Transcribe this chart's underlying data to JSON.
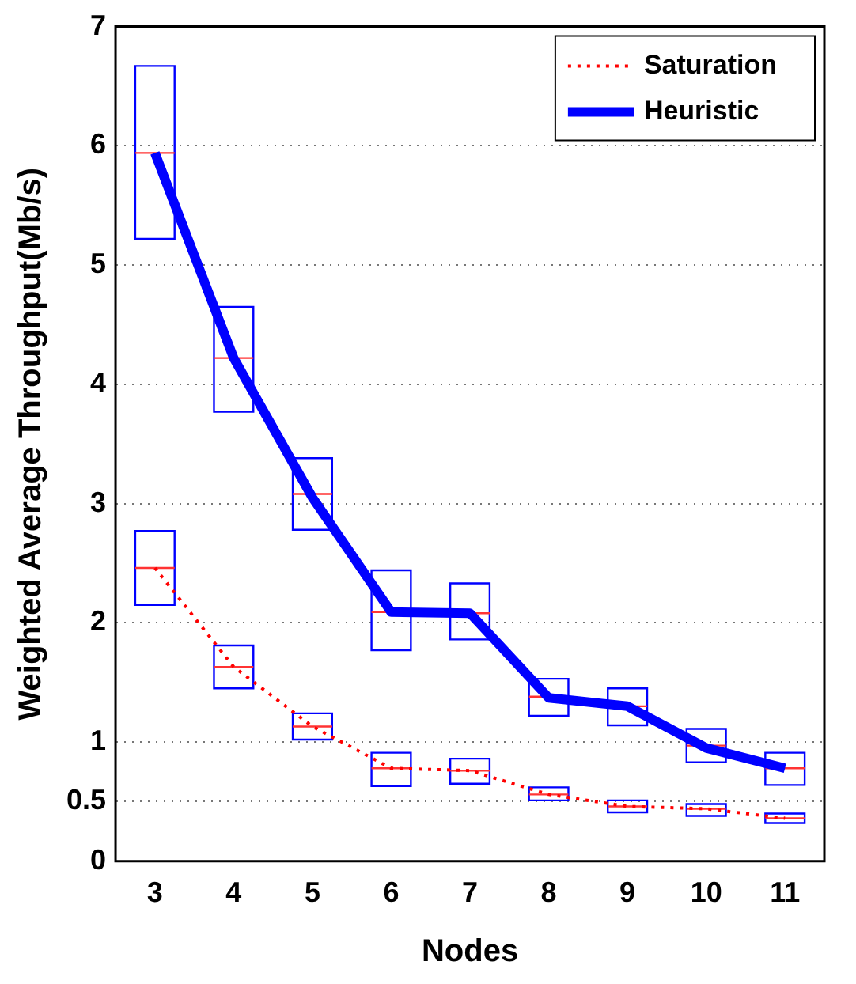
{
  "chart_data": {
    "type": "box",
    "xlabel": "Nodes",
    "ylabel": "Weighted Average Throughput(Mb/s)",
    "categories": [
      "3",
      "4",
      "5",
      "6",
      "7",
      "8",
      "9",
      "10",
      "11"
    ],
    "ylim": [
      0,
      7
    ],
    "yticks": [
      0,
      0.5,
      1,
      2,
      3,
      4,
      5,
      6,
      7
    ],
    "grid": "y",
    "legend": "top right",
    "marker": "none",
    "series": [
      {
        "color": "#0000ff",
        "boxes": [
          {
            "low": 2.15,
            "q1": 2.15,
            "median": 2.46,
            "q3": 2.77,
            "high": 2.77
          },
          {
            "low": 1.45,
            "q1": 1.45,
            "median": 1.63,
            "q3": 1.81,
            "high": 1.81
          },
          {
            "low": 1.02,
            "q1": 1.02,
            "median": 1.13,
            "q3": 1.24,
            "high": 1.24
          },
          {
            "low": 0.63,
            "q1": 0.63,
            "median": 0.78,
            "q3": 0.91,
            "high": 0.91
          },
          {
            "low": 0.65,
            "q1": 0.65,
            "median": 0.76,
            "q3": 0.86,
            "high": 0.86
          },
          {
            "low": 0.51,
            "q1": 0.51,
            "median": 0.56,
            "q3": 0.62,
            "high": 0.62
          },
          {
            "low": 0.41,
            "q1": 0.41,
            "median": 0.46,
            "q3": 0.51,
            "high": 0.51
          },
          {
            "low": 0.38,
            "q1": 0.38,
            "median": 0.44,
            "q3": 0.48,
            "high": 0.48
          },
          {
            "low": 0.32,
            "q1": 0.32,
            "median": 0.36,
            "q3": 0.4,
            "high": 0.4
          }
        ]
      },
      {
        "color": "#0000ff",
        "boxes": [
          {
            "low": 5.22,
            "q1": 5.22,
            "median": 5.94,
            "q3": 6.67,
            "high": 6.67
          },
          {
            "low": 3.77,
            "q1": 3.77,
            "median": 4.22,
            "q3": 4.65,
            "high": 4.65
          },
          {
            "low": 2.78,
            "q1": 2.78,
            "median": 3.08,
            "q3": 3.38,
            "high": 3.38
          },
          {
            "low": 1.77,
            "q1": 1.77,
            "median": 2.09,
            "q3": 2.44,
            "high": 2.44
          },
          {
            "low": 1.86,
            "q1": 1.86,
            "median": 2.08,
            "q3": 2.33,
            "high": 2.33
          },
          {
            "low": 1.22,
            "q1": 1.22,
            "median": 1.38,
            "q3": 1.53,
            "high": 1.53
          },
          {
            "low": 1.14,
            "q1": 1.14,
            "median": 1.3,
            "q3": 1.45,
            "high": 1.45
          },
          {
            "low": 0.83,
            "q1": 0.83,
            "median": 0.97,
            "q3": 1.11,
            "high": 1.11
          },
          {
            "low": 0.64,
            "q1": 0.64,
            "median": 0.78,
            "q3": 0.91,
            "high": 0.91
          }
        ]
      },
      {
        "type": "line",
        "name": "Saturation",
        "color": "#ff0000",
        "line_style": "dotted",
        "values": [
          2.46,
          1.63,
          1.13,
          0.78,
          0.76,
          0.56,
          0.46,
          0.44,
          0.36
        ]
      },
      {
        "type": "line",
        "name": "Heuristic",
        "color": "#0000ff",
        "line_style": "solid",
        "values": [
          5.94,
          4.22,
          3.05,
          2.09,
          2.08,
          1.37,
          1.3,
          0.95,
          0.78
        ]
      }
    ]
  }
}
